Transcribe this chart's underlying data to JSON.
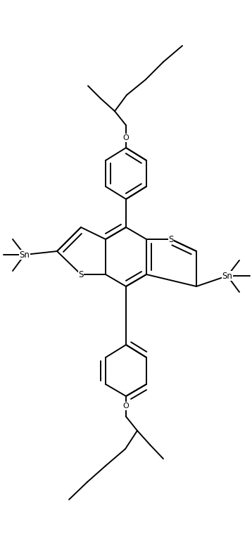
{
  "background": "#ffffff",
  "line_color": "#000000",
  "lw": 1.4,
  "figsize": [
    3.58,
    7.66
  ],
  "dpi": 100,
  "xlim": [
    0,
    358
  ],
  "ylim": [
    0,
    766
  ]
}
